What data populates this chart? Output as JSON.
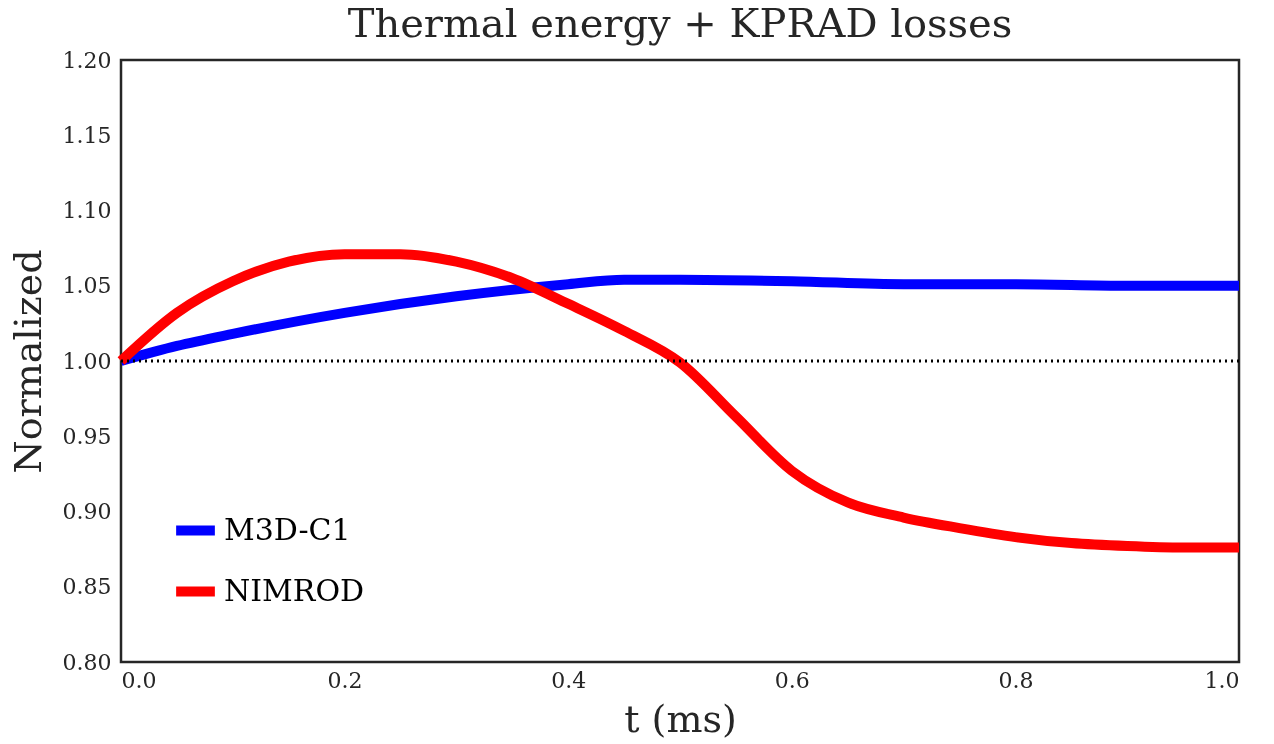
{
  "chart_data": {
    "type": "line",
    "title": "Thermal energy + KPRAD losses",
    "xlabel": "t (ms)",
    "ylabel": "Normalized",
    "xlim": [
      0,
      1.0
    ],
    "ylim": [
      0.8,
      1.2
    ],
    "xticks": [
      {
        "value": 0,
        "label": "0.0"
      },
      0.2,
      0.4,
      0.6,
      0.8,
      {
        "value": 1.0,
        "label": "1.0"
      }
    ],
    "yticks": [
      {
        "value": 0.8,
        "label": "0.80"
      },
      0.85,
      {
        "value": 0.9,
        "label": "0.90"
      },
      0.95,
      {
        "value": 1.0,
        "label": "1.00"
      },
      1.05,
      {
        "value": 1.1,
        "label": "1.10"
      },
      1.15,
      {
        "value": 1.2,
        "label": "1.20"
      }
    ],
    "grid": false,
    "legend": "bottom left",
    "line_style": "solid",
    "marker": "none",
    "ref_lines": [
      {
        "axis": "y",
        "value": 1.0,
        "color": "#000000",
        "line_style": "dotted"
      }
    ],
    "series": [
      {
        "name": "M3D-C1",
        "color": "#0000ff",
        "x": [
          0,
          0.05,
          0.1,
          0.2,
          0.3,
          0.4,
          0.45,
          0.5,
          0.6,
          0.7,
          0.8,
          0.9,
          1.0
        ],
        "values": [
          1.0,
          1.01,
          1.018,
          1.032,
          1.043,
          1.051,
          1.054,
          1.054,
          1.053,
          1.051,
          1.051,
          1.05,
          1.05
        ]
      },
      {
        "name": "NIMROD",
        "color": "#ff0000",
        "x": [
          0,
          0.05,
          0.1,
          0.15,
          0.2,
          0.25,
          0.3,
          0.35,
          0.4,
          0.45,
          0.5,
          0.55,
          0.6,
          0.65,
          0.7,
          0.75,
          0.8,
          0.85,
          0.9,
          0.95,
          1.0
        ],
        "values": [
          1.0,
          1.032,
          1.053,
          1.066,
          1.071,
          1.071,
          1.066,
          1.055,
          1.038,
          1.02,
          0.999,
          0.963,
          0.927,
          0.906,
          0.896,
          0.889,
          0.883,
          0.879,
          0.877,
          0.876,
          0.876
        ]
      }
    ]
  }
}
